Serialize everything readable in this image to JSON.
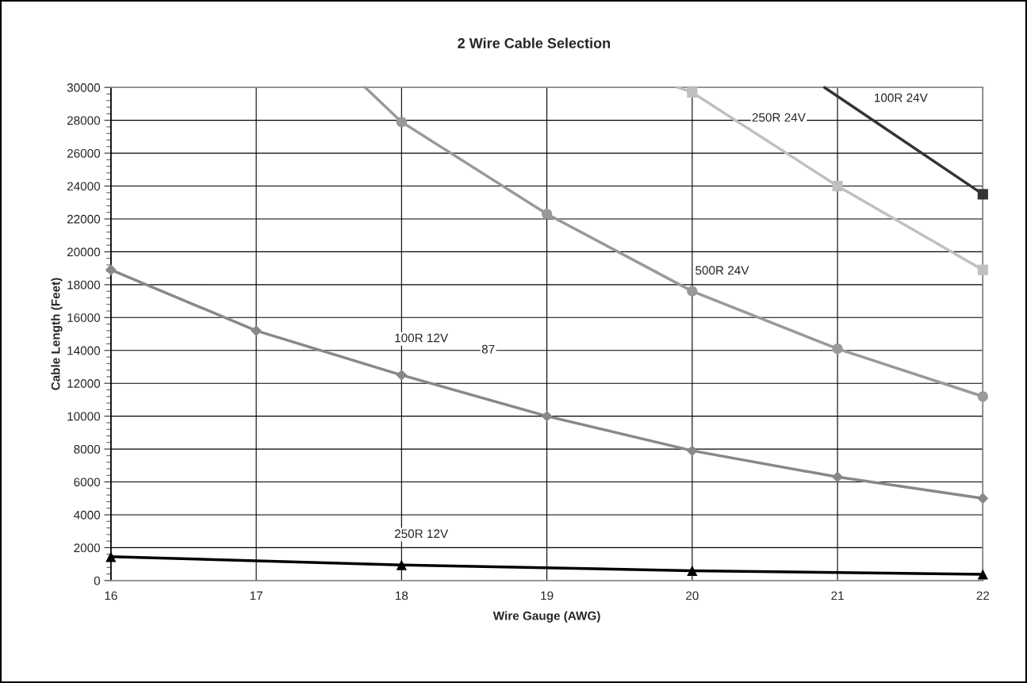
{
  "chart_data": {
    "type": "line",
    "title": "2 Wire Cable Selection",
    "xlabel": "Wire Gauge (AWG)",
    "ylabel": "Cable Length (Feet)",
    "xlim": [
      16,
      22
    ],
    "xticks": [
      16,
      17,
      18,
      19,
      20,
      21,
      22
    ],
    "ylim": [
      0,
      30000
    ],
    "yticks": [
      0,
      2000,
      4000,
      6000,
      8000,
      10000,
      12000,
      14000,
      16000,
      18000,
      20000,
      22000,
      24000,
      26000,
      28000,
      30000
    ],
    "grid": true,
    "legend": false,
    "series": [
      {
        "name": "250R 12V",
        "color": "#000000",
        "marker": "triangle",
        "x": [
          16,
          18,
          20,
          22
        ],
        "values": [
          1450,
          950,
          600,
          380
        ]
      },
      {
        "name": "100R 12V",
        "color": "#888888",
        "marker": "diamond",
        "x": [
          16,
          17,
          18,
          19,
          20,
          21,
          22
        ],
        "values": [
          18900,
          15200,
          12500,
          10000,
          7900,
          6300,
          5000
        ]
      },
      {
        "name": "500R 24V",
        "color": "#999999",
        "marker": "circle",
        "x": [
          17.75,
          18,
          19,
          20,
          21,
          22
        ],
        "values": [
          30000,
          27900,
          22300,
          17600,
          14100,
          11200
        ]
      },
      {
        "name": "250R 24V",
        "color": "#c0c0c0",
        "marker": "square",
        "x": [
          19.9,
          20,
          21,
          22
        ],
        "values": [
          30000,
          29700,
          24000,
          18900
        ]
      },
      {
        "name": "100R 24V",
        "color": "#333333",
        "marker": "square",
        "x": [
          20.91,
          22
        ],
        "values": [
          30000,
          23500
        ]
      }
    ],
    "annotations": [
      "87"
    ]
  }
}
